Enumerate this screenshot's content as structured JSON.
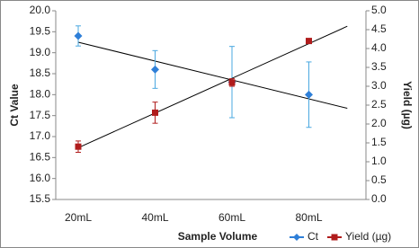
{
  "chart_data": {
    "type": "line",
    "x_label": "Sample Volume",
    "y_label": "Ct Value",
    "y2_label": "Yield (µg)",
    "categories": [
      "20mL",
      "40mL",
      "60mL",
      "80mL"
    ],
    "series": [
      {
        "name": "Ct",
        "color": "#2e7fd8",
        "error_color": "#4aa8e0",
        "marker": "diamond",
        "values": [
          19.4,
          18.6,
          18.3,
          18.0
        ],
        "errors": [
          0.24,
          0.45,
          0.85,
          0.78
        ]
      },
      {
        "name": "Yield (µg)",
        "color": "#b01c1c",
        "error_color": "#b01c1c",
        "marker": "square",
        "axis": "y2",
        "values": [
          1.4,
          2.3,
          3.1,
          4.2
        ],
        "errors": [
          0.15,
          0.28,
          0.1,
          0.05
        ]
      }
    ],
    "trendline": true,
    "ylim": [
      15.5,
      20.0
    ],
    "yticks": [
      15.5,
      {
        "value": 16,
        "label": "16.0"
      },
      16.5,
      {
        "value": 17,
        "label": "17.0"
      },
      17.5,
      {
        "value": 18,
        "label": "18.0"
      },
      18.5,
      {
        "value": 19,
        "label": "19.0"
      },
      19.5,
      {
        "value": 20,
        "label": "20.0"
      }
    ],
    "y2lim": [
      0,
      5
    ],
    "y2ticks": [
      {
        "value": 0,
        "label": "0.0"
      },
      0.5,
      {
        "value": 1,
        "label": "1.0"
      },
      1.5,
      {
        "value": 2,
        "label": "2.0"
      },
      2.5,
      {
        "value": 3,
        "label": "3.0"
      },
      3.5,
      {
        "value": 4,
        "label": "4.0"
      },
      4.5,
      {
        "value": 5,
        "label": "5.0"
      }
    ],
    "legend": "bottom-right"
  }
}
